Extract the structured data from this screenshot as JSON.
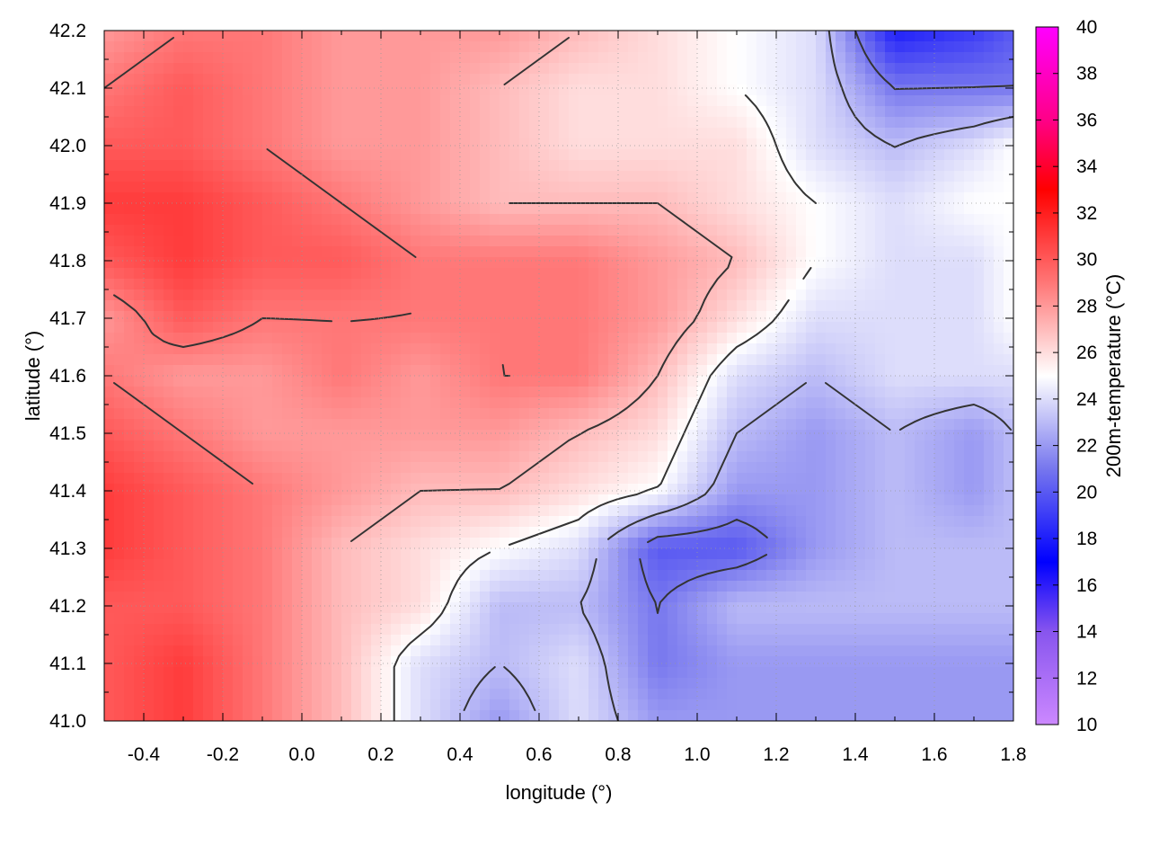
{
  "chart_data": {
    "type": "heatmap",
    "title": "",
    "xlabel": "longitude (°)",
    "ylabel": "latitude (°)",
    "colorbar_label": "200m-temperature (°C)",
    "xlim": [
      -0.5,
      1.8
    ],
    "ylim": [
      41.0,
      42.2
    ],
    "clim": [
      10,
      40
    ],
    "x_ticks": [
      -0.4,
      -0.2,
      0.0,
      0.2,
      0.4,
      0.6,
      0.8,
      1.0,
      1.2,
      1.4,
      1.6,
      1.8
    ],
    "x_tick_labels": [
      "-0.4",
      "-0.2",
      "0.0",
      "0.2",
      "0.4",
      "0.6",
      "0.8",
      "1.0",
      "1.2",
      "1.4",
      "1.6",
      "1.8"
    ],
    "y_ticks": [
      41.0,
      41.1,
      41.2,
      41.3,
      41.4,
      41.5,
      41.6,
      41.7,
      41.8,
      41.9,
      42.0,
      42.1,
      42.2
    ],
    "y_tick_labels": [
      "41.0",
      "41.1",
      "41.2",
      "41.3",
      "41.4",
      "41.5",
      "41.6",
      "41.7",
      "41.8",
      "41.9",
      "42.0",
      "42.1",
      "42.2"
    ],
    "colorbar_ticks": [
      10,
      12,
      14,
      16,
      18,
      20,
      22,
      24,
      26,
      28,
      30,
      32,
      34,
      36,
      38,
      40
    ],
    "colorbar_tick_labels": [
      "10",
      "12",
      "14",
      "16",
      "18",
      "20",
      "22",
      "24",
      "26",
      "28",
      "30",
      "32",
      "34",
      "36",
      "38",
      "40"
    ],
    "colormap": [
      {
        "value": 10,
        "color": "#cc88ff"
      },
      {
        "value": 14,
        "color": "#8855ee"
      },
      {
        "value": 17,
        "color": "#0000ff"
      },
      {
        "value": 21,
        "color": "#7777ee"
      },
      {
        "value": 25,
        "color": "#ffffff"
      },
      {
        "value": 29,
        "color": "#ff7777"
      },
      {
        "value": 33,
        "color": "#ff0000"
      },
      {
        "value": 36,
        "color": "#ff0088"
      },
      {
        "value": 40,
        "color": "#ff00ff"
      }
    ],
    "grid": true,
    "grid_style": "dotted",
    "contour_color": "#333333",
    "temperature_field": {
      "lon": [
        -0.5,
        -0.3,
        -0.1,
        0.1,
        0.3,
        0.5,
        0.7,
        0.9,
        1.1,
        1.3,
        1.5,
        1.7,
        1.8
      ],
      "lat": [
        42.2,
        42.1,
        42.0,
        41.9,
        41.8,
        41.7,
        41.6,
        41.5,
        41.4,
        41.3,
        41.2,
        41.1,
        41.0
      ],
      "values": [
        [
          28,
          29,
          29,
          28,
          28,
          28,
          27,
          26,
          25,
          24,
          18,
          19,
          20
        ],
        [
          29,
          30,
          29,
          28,
          28,
          27,
          26,
          26,
          25,
          24,
          21,
          21,
          21
        ],
        [
          30,
          30,
          29,
          28,
          28,
          27,
          26,
          26,
          26,
          24,
          23,
          24,
          25
        ],
        [
          31,
          31,
          30,
          29,
          28,
          27,
          27,
          27,
          26,
          25,
          24,
          25,
          25
        ],
        [
          30,
          31,
          30,
          30,
          29,
          29,
          29,
          28,
          27,
          25,
          24,
          24,
          25
        ],
        [
          28,
          30,
          29,
          29,
          29,
          29,
          29,
          28,
          26,
          24,
          24,
          24,
          25
        ],
        [
          29,
          28,
          28,
          29,
          28,
          29,
          29,
          27,
          24,
          23,
          24,
          24,
          24
        ],
        [
          30,
          29,
          28,
          28,
          28,
          28,
          27,
          26,
          23,
          22,
          23,
          22,
          23
        ],
        [
          31,
          30,
          29,
          28,
          27,
          27,
          26,
          25,
          22,
          22,
          23,
          22,
          23
        ],
        [
          31,
          30,
          29,
          27,
          26,
          25,
          24,
          20,
          20,
          22,
          23,
          23,
          23
        ],
        [
          30,
          30,
          29,
          27,
          26,
          23,
          23,
          21,
          23,
          23,
          23,
          23,
          23
        ],
        [
          30,
          31,
          29,
          27,
          24,
          23,
          24,
          21,
          22,
          22,
          22,
          22,
          22
        ],
        [
          30,
          31,
          29,
          27,
          24,
          22,
          24,
          22,
          22,
          22,
          22,
          22,
          22
        ]
      ]
    }
  }
}
